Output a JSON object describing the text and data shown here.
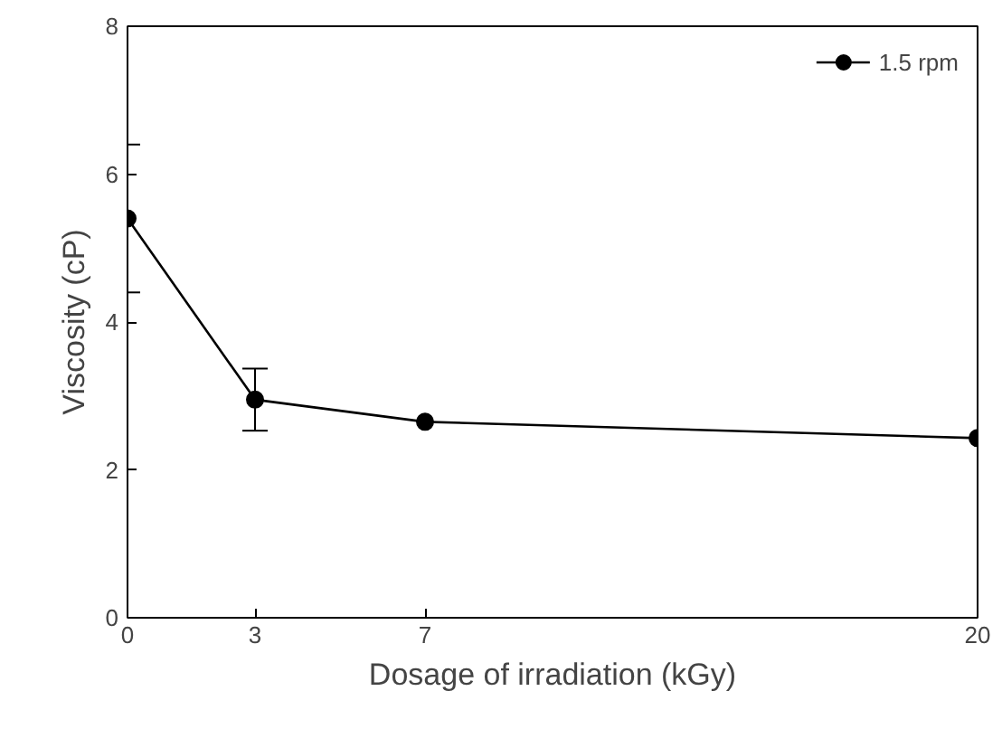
{
  "chart_data": {
    "type": "line",
    "xlabel": "Dosage of irradiation (kGy)",
    "ylabel": "Viscosity (cP)",
    "x": [
      0,
      3,
      7,
      20
    ],
    "series": [
      {
        "name": "1.5 rpm",
        "color": "#000000",
        "values": [
          5.4,
          2.95,
          2.65,
          2.43
        ],
        "errors": [
          1.0,
          0.42,
          null,
          null
        ]
      }
    ],
    "xlim": [
      0,
      20
    ],
    "xticks": [
      0,
      3,
      7,
      20
    ],
    "ylim": [
      0,
      8
    ],
    "yticks": [
      0,
      2,
      4,
      6,
      8
    ],
    "grid": false,
    "legend": "top right",
    "marker": "circle",
    "line_style": "solid"
  }
}
